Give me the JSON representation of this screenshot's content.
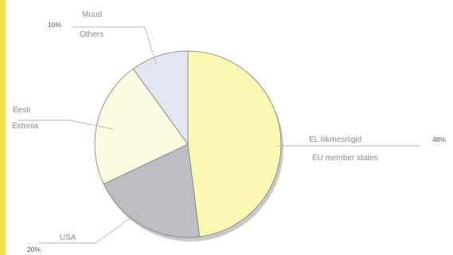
{
  "colors": {
    "accent_strip": "#f3e04a",
    "eu": "#fbf8b4",
    "estonia": "#fdfbe0",
    "usa": "#bdbdc3",
    "others": "#e2e6f3",
    "shadow": "#c9c9c9",
    "leader": "#b8b8b8"
  },
  "chart_data": {
    "type": "pie",
    "title": "",
    "slices": [
      {
        "label_et": "EL liikmesriigid",
        "label_en": "EU member states",
        "percent_text": "48%",
        "value": 48,
        "color": "#fbf8b4"
      },
      {
        "label_et": "",
        "label_en": "USA",
        "percent_text": "20%",
        "value": 20,
        "color": "#bdbdc3"
      },
      {
        "label_et": "Eesti",
        "label_en": "Estonia",
        "percent_text": "",
        "value": 22,
        "color": "#fdfbe0"
      },
      {
        "label_et": "Muud",
        "label_en": "Others",
        "percent_text": "10%",
        "value": 10,
        "color": "#e2e6f3"
      }
    ]
  }
}
